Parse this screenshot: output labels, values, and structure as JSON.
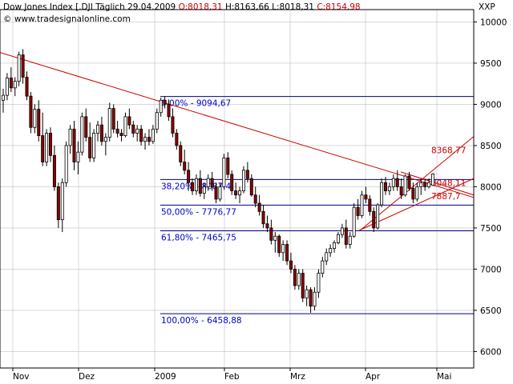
{
  "header": {
    "instrument": "Dow Jones Index [.DJI",
    "period": "Täglich",
    "date": "29.04.2009",
    "open": "O:8018,31",
    "high": "H:8163,66",
    "low": "L:8018,31",
    "close": "C:8154,98",
    "website": "© www.tradesignalonline.com",
    "ticker": "XXP"
  },
  "colors": {
    "up_candle": "#ffffff",
    "down_candle": "#8b0000",
    "candle_outline": "#000000",
    "fib_line": "#00007f",
    "fib_text": "#0000cc",
    "trend_line": "#cc0000",
    "trend_text": "#cc0000",
    "grid": "#c0c0c0"
  },
  "chart_data": {
    "type": "candlestick",
    "y_axis": {
      "min": 5800,
      "max": 10150,
      "ticks": [
        "10000",
        "9500",
        "9000",
        "8500",
        "8000",
        "7500",
        "7000",
        "6500",
        "6000"
      ],
      "side": "right"
    },
    "x_axis": {
      "labels": [
        "Nov",
        "Dez",
        "2009",
        "Feb",
        "Mrz",
        "Apr",
        "Mai"
      ]
    },
    "grid": true,
    "fibonacci_levels": [
      {
        "label": "0,00% - 9094,67",
        "value": 9094.67
      },
      {
        "label": "38,20% - 8087,4",
        "value": 8087.4
      },
      {
        "label": "50,00% - 7776,77",
        "value": 7776.77
      },
      {
        "label": "61,80% - 7465,75",
        "value": 7465.75
      },
      {
        "label": "100,00% - 6458,88",
        "value": 6458.88
      }
    ],
    "trend_labels": [
      {
        "label": "8368,77",
        "value": 8368.77
      },
      {
        "label": "8048,11",
        "value": 8048.11
      },
      {
        "label": "7887,7",
        "value": 7887.7
      }
    ],
    "candles": [
      {
        "o": 9050,
        "h": 9190,
        "l": 8900,
        "c": 9110
      },
      {
        "o": 9110,
        "h": 9380,
        "l": 9050,
        "c": 9320
      },
      {
        "o": 9320,
        "h": 9450,
        "l": 9150,
        "c": 9200
      },
      {
        "o": 9200,
        "h": 9330,
        "l": 9100,
        "c": 9280
      },
      {
        "o": 9280,
        "h": 9640,
        "l": 9220,
        "c": 9600
      },
      {
        "o": 9600,
        "h": 9670,
        "l": 9250,
        "c": 9330
      },
      {
        "o": 9330,
        "h": 9400,
        "l": 9050,
        "c": 9100
      },
      {
        "o": 9100,
        "h": 9150,
        "l": 8650,
        "c": 8720
      },
      {
        "o": 8720,
        "h": 9000,
        "l": 8650,
        "c": 8940
      },
      {
        "o": 8940,
        "h": 9050,
        "l": 8550,
        "c": 8620
      },
      {
        "o": 8620,
        "h": 8900,
        "l": 8250,
        "c": 8300
      },
      {
        "o": 8300,
        "h": 8700,
        "l": 8250,
        "c": 8650
      },
      {
        "o": 8650,
        "h": 8720,
        "l": 8300,
        "c": 8380
      },
      {
        "o": 8380,
        "h": 8500,
        "l": 7950,
        "c": 8000
      },
      {
        "o": 8000,
        "h": 8050,
        "l": 7500,
        "c": 7600
      },
      {
        "o": 7600,
        "h": 8100,
        "l": 7450,
        "c": 8050
      },
      {
        "o": 8050,
        "h": 8550,
        "l": 8000,
        "c": 8500
      },
      {
        "o": 8500,
        "h": 8750,
        "l": 8400,
        "c": 8700
      },
      {
        "o": 8700,
        "h": 8800,
        "l": 8200,
        "c": 8300
      },
      {
        "o": 8300,
        "h": 8550,
        "l": 8150,
        "c": 8420
      },
      {
        "o": 8420,
        "h": 8900,
        "l": 8380,
        "c": 8850
      },
      {
        "o": 8850,
        "h": 8950,
        "l": 8550,
        "c": 8600
      },
      {
        "o": 8600,
        "h": 8780,
        "l": 8300,
        "c": 8350
      },
      {
        "o": 8350,
        "h": 8700,
        "l": 8300,
        "c": 8650
      },
      {
        "o": 8650,
        "h": 8800,
        "l": 8550,
        "c": 8750
      },
      {
        "o": 8750,
        "h": 8850,
        "l": 8500,
        "c": 8550
      },
      {
        "o": 8550,
        "h": 8650,
        "l": 8380,
        "c": 8600
      },
      {
        "o": 8600,
        "h": 9020,
        "l": 8550,
        "c": 8950
      },
      {
        "o": 8950,
        "h": 9000,
        "l": 8650,
        "c": 8700
      },
      {
        "o": 8700,
        "h": 8800,
        "l": 8600,
        "c": 8650
      },
      {
        "o": 8650,
        "h": 8700,
        "l": 8550,
        "c": 8620
      },
      {
        "o": 8620,
        "h": 8900,
        "l": 8600,
        "c": 8850
      },
      {
        "o": 8850,
        "h": 8950,
        "l": 8700,
        "c": 8750
      },
      {
        "o": 8750,
        "h": 8800,
        "l": 8600,
        "c": 8650
      },
      {
        "o": 8650,
        "h": 8750,
        "l": 8550,
        "c": 8700
      },
      {
        "o": 8700,
        "h": 8750,
        "l": 8500,
        "c": 8550
      },
      {
        "o": 8550,
        "h": 8650,
        "l": 8450,
        "c": 8600
      },
      {
        "o": 8600,
        "h": 8700,
        "l": 8500,
        "c": 8550
      },
      {
        "o": 8550,
        "h": 8750,
        "l": 8520,
        "c": 8700
      },
      {
        "o": 8700,
        "h": 8950,
        "l": 8650,
        "c": 8900
      },
      {
        "o": 8900,
        "h": 9080,
        "l": 8850,
        "c": 9050
      },
      {
        "o": 9050,
        "h": 9100,
        "l": 8950,
        "c": 9000
      },
      {
        "o": 9000,
        "h": 9060,
        "l": 8800,
        "c": 8850
      },
      {
        "o": 8850,
        "h": 8950,
        "l": 8600,
        "c": 8650
      },
      {
        "o": 8650,
        "h": 8700,
        "l": 8450,
        "c": 8500
      },
      {
        "o": 8500,
        "h": 8550,
        "l": 8250,
        "c": 8300
      },
      {
        "o": 8300,
        "h": 8450,
        "l": 8150,
        "c": 8200
      },
      {
        "o": 8200,
        "h": 8300,
        "l": 7950,
        "c": 8050
      },
      {
        "o": 8050,
        "h": 8100,
        "l": 7900,
        "c": 7950
      },
      {
        "o": 7950,
        "h": 8150,
        "l": 7900,
        "c": 8100
      },
      {
        "o": 8100,
        "h": 8200,
        "l": 7880,
        "c": 7920
      },
      {
        "o": 7920,
        "h": 8050,
        "l": 7850,
        "c": 8000
      },
      {
        "o": 8000,
        "h": 8150,
        "l": 7950,
        "c": 8100
      },
      {
        "o": 8100,
        "h": 8180,
        "l": 7950,
        "c": 8000
      },
      {
        "o": 8000,
        "h": 8050,
        "l": 7800,
        "c": 7850
      },
      {
        "o": 7850,
        "h": 8050,
        "l": 7820,
        "c": 8000
      },
      {
        "o": 8000,
        "h": 8400,
        "l": 7980,
        "c": 8350
      },
      {
        "o": 8350,
        "h": 8420,
        "l": 8100,
        "c": 8150
      },
      {
        "o": 8150,
        "h": 8200,
        "l": 7900,
        "c": 7950
      },
      {
        "o": 7950,
        "h": 8050,
        "l": 7850,
        "c": 7900
      },
      {
        "o": 7900,
        "h": 8000,
        "l": 7800,
        "c": 7950
      },
      {
        "o": 7950,
        "h": 8250,
        "l": 7920,
        "c": 8200
      },
      {
        "o": 8200,
        "h": 8300,
        "l": 8050,
        "c": 8100
      },
      {
        "o": 8100,
        "h": 8150,
        "l": 7880,
        "c": 7900
      },
      {
        "o": 7900,
        "h": 8000,
        "l": 7750,
        "c": 7800
      },
      {
        "o": 7800,
        "h": 7900,
        "l": 7650,
        "c": 7700
      },
      {
        "o": 7700,
        "h": 7780,
        "l": 7500,
        "c": 7550
      },
      {
        "o": 7550,
        "h": 7650,
        "l": 7450,
        "c": 7500
      },
      {
        "o": 7500,
        "h": 7600,
        "l": 7300,
        "c": 7350
      },
      {
        "o": 7350,
        "h": 7450,
        "l": 7200,
        "c": 7400
      },
      {
        "o": 7400,
        "h": 7420,
        "l": 7150,
        "c": 7200
      },
      {
        "o": 7200,
        "h": 7350,
        "l": 7100,
        "c": 7300
      },
      {
        "o": 7300,
        "h": 7350,
        "l": 7050,
        "c": 7100
      },
      {
        "o": 7100,
        "h": 7200,
        "l": 6950,
        "c": 7000
      },
      {
        "o": 7000,
        "h": 7050,
        "l": 6750,
        "c": 6800
      },
      {
        "o": 6800,
        "h": 7000,
        "l": 6750,
        "c": 6950
      },
      {
        "o": 6950,
        "h": 7000,
        "l": 6600,
        "c": 6650
      },
      {
        "o": 6650,
        "h": 6800,
        "l": 6550,
        "c": 6750
      },
      {
        "o": 6750,
        "h": 6780,
        "l": 6470,
        "c": 6550
      },
      {
        "o": 6550,
        "h": 6780,
        "l": 6500,
        "c": 6720
      },
      {
        "o": 6720,
        "h": 7000,
        "l": 6650,
        "c": 6950
      },
      {
        "o": 6950,
        "h": 7150,
        "l": 6900,
        "c": 7100
      },
      {
        "o": 7100,
        "h": 7250,
        "l": 7050,
        "c": 7200
      },
      {
        "o": 7200,
        "h": 7300,
        "l": 7150,
        "c": 7250
      },
      {
        "o": 7250,
        "h": 7350,
        "l": 7200,
        "c": 7320
      },
      {
        "o": 7320,
        "h": 7450,
        "l": 7300,
        "c": 7420
      },
      {
        "o": 7420,
        "h": 7550,
        "l": 7380,
        "c": 7500
      },
      {
        "o": 7500,
        "h": 7600,
        "l": 7250,
        "c": 7300
      },
      {
        "o": 7300,
        "h": 7450,
        "l": 7250,
        "c": 7400
      },
      {
        "o": 7400,
        "h": 7800,
        "l": 7380,
        "c": 7750
      },
      {
        "o": 7750,
        "h": 7850,
        "l": 7600,
        "c": 7650
      },
      {
        "o": 7650,
        "h": 7950,
        "l": 7620,
        "c": 7900
      },
      {
        "o": 7900,
        "h": 8000,
        "l": 7800,
        "c": 7850
      },
      {
        "o": 7850,
        "h": 7900,
        "l": 7650,
        "c": 7700
      },
      {
        "o": 7700,
        "h": 7750,
        "l": 7450,
        "c": 7500
      },
      {
        "o": 7500,
        "h": 7800,
        "l": 7480,
        "c": 7780
      },
      {
        "o": 7780,
        "h": 8100,
        "l": 7750,
        "c": 8050
      },
      {
        "o": 8050,
        "h": 8120,
        "l": 7900,
        "c": 7950
      },
      {
        "o": 7950,
        "h": 8050,
        "l": 7900,
        "c": 8000
      },
      {
        "o": 8000,
        "h": 8150,
        "l": 7950,
        "c": 8100
      },
      {
        "o": 8100,
        "h": 8200,
        "l": 7950,
        "c": 8000
      },
      {
        "o": 8000,
        "h": 8100,
        "l": 7850,
        "c": 7900
      },
      {
        "o": 7900,
        "h": 8150,
        "l": 7880,
        "c": 8130
      },
      {
        "o": 8130,
        "h": 8180,
        "l": 7950,
        "c": 7980
      },
      {
        "o": 7980,
        "h": 8050,
        "l": 7800,
        "c": 7850
      },
      {
        "o": 7850,
        "h": 8050,
        "l": 7820,
        "c": 8000
      },
      {
        "o": 8000,
        "h": 8100,
        "l": 7900,
        "c": 8050
      },
      {
        "o": 8050,
        "h": 8100,
        "l": 7950,
        "c": 8000
      },
      {
        "o": 8000,
        "h": 8100,
        "l": 7980,
        "c": 8050
      },
      {
        "o": 8018,
        "h": 8164,
        "l": 8018,
        "c": 8155
      }
    ]
  }
}
